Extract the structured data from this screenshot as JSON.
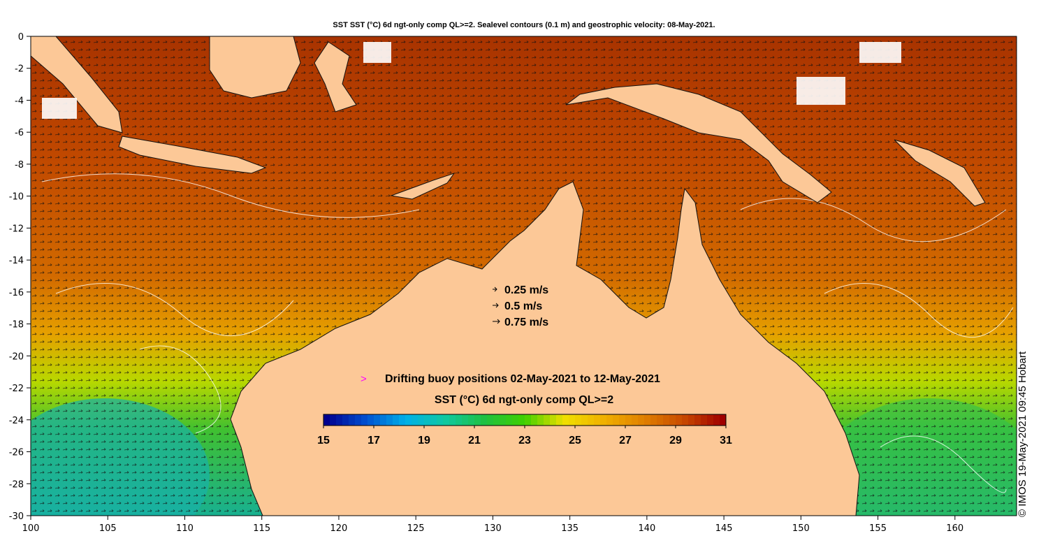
{
  "title": "SST SST (°C) 6d ngt-only comp QL>=2. Sealevel contours (0.1 m) and geostrophic velocity: 08-May-2021.",
  "credit": "© IMOS 19-May-2021 09:45 Hobart",
  "axes": {
    "x_range": [
      100,
      164
    ],
    "y_range": [
      -30,
      0
    ],
    "x_ticks": [
      "100",
      "105",
      "110",
      "115",
      "120",
      "125",
      "130",
      "135",
      "140",
      "145",
      "150",
      "155",
      "160"
    ],
    "y_ticks": [
      "0",
      "-2",
      "-4",
      "-6",
      "-8",
      "-10",
      "-12",
      "-14",
      "-16",
      "-18",
      "-20",
      "-22",
      "-24",
      "-26",
      "-28",
      "-30"
    ]
  },
  "velocity_legend": [
    {
      "label": "0.25 m/s",
      "speed": 0.25
    },
    {
      "label": "0.5 m/s",
      "speed": 0.5
    },
    {
      "label": "0.75 m/s",
      "speed": 0.75
    }
  ],
  "buoy_legend": {
    "symbol": ">",
    "label": "Drifting buoy positions 02-May-2021 to 12-May-2021",
    "color": "#ff00ff"
  },
  "colorbar": {
    "title": "SST (°C) 6d ngt-only comp QL>=2",
    "min": 15,
    "max": 31,
    "tick_labels": [
      "15",
      "17",
      "19",
      "21",
      "23",
      "25",
      "27",
      "29",
      "31"
    ],
    "colors": [
      "#00008f",
      "#0050d0",
      "#00b0e8",
      "#10c8a0",
      "#20c040",
      "#40d000",
      "#f0e000",
      "#f0b000",
      "#e08000",
      "#c84a00",
      "#a00000"
    ]
  },
  "colors": {
    "land": "#fcc897",
    "ocean_warm": "#c25a00",
    "ocean_mid": "#e08d05",
    "ocean_cool": "#30c040"
  }
}
